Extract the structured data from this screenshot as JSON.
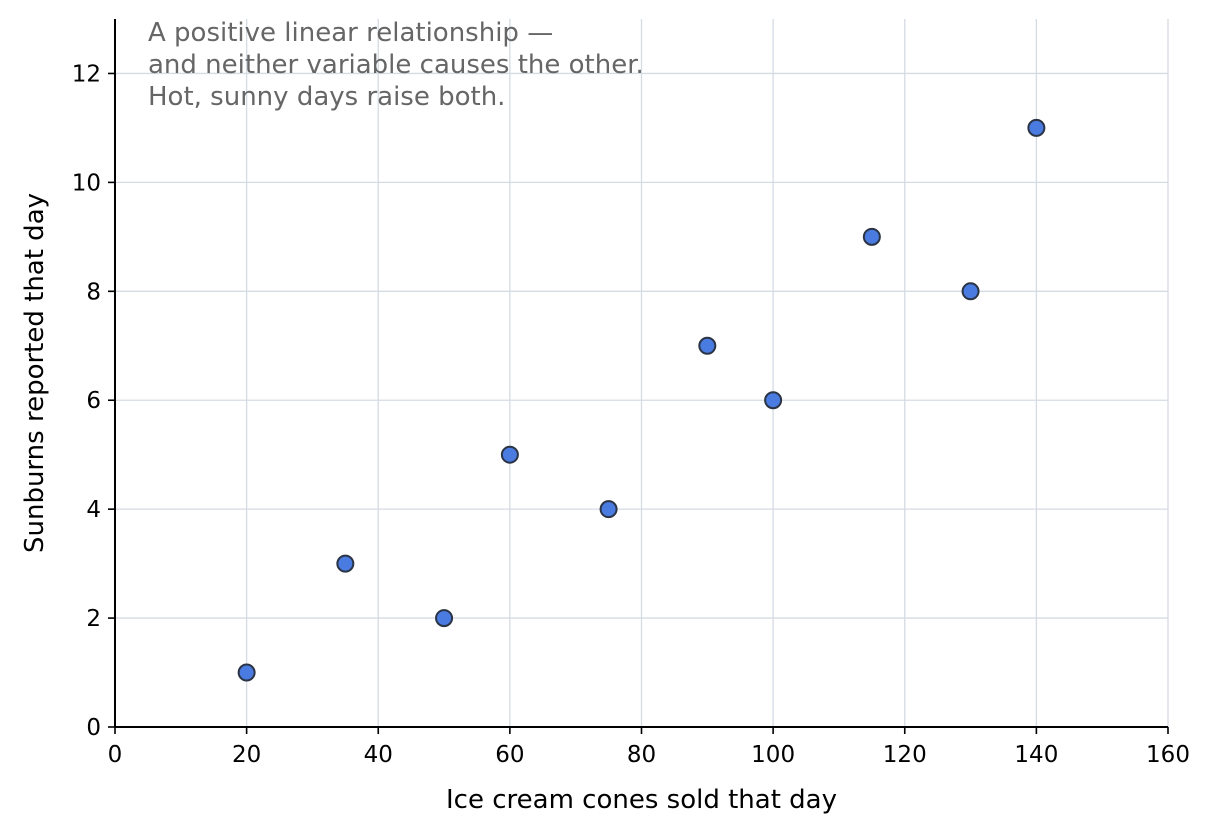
{
  "chart_data": {
    "type": "scatter",
    "title": "",
    "xlabel": "Ice cream cones sold that day",
    "ylabel": "Sunburns reported that day",
    "xlim": [
      0,
      160
    ],
    "ylim": [
      0,
      13
    ],
    "xticks": [
      0,
      20,
      40,
      60,
      80,
      100,
      120,
      140,
      160
    ],
    "yticks": [
      0,
      2,
      4,
      6,
      8,
      10,
      12
    ],
    "grid": true,
    "points": [
      {
        "x": 20,
        "y": 1
      },
      {
        "x": 35,
        "y": 3
      },
      {
        "x": 50,
        "y": 2
      },
      {
        "x": 60,
        "y": 5
      },
      {
        "x": 75,
        "y": 4
      },
      {
        "x": 90,
        "y": 7
      },
      {
        "x": 100,
        "y": 6
      },
      {
        "x": 115,
        "y": 9
      },
      {
        "x": 130,
        "y": 8
      },
      {
        "x": 140,
        "y": 11
      }
    ],
    "annotation": [
      "A positive linear relationship —",
      "and neither variable causes the other.",
      "Hot, sunny days raise both."
    ],
    "colors": {
      "marker_fill": "#4a7be0",
      "marker_edge": "#2a3445",
      "grid": "#d5dbe3",
      "axis": "#000000",
      "annotation": "#666666"
    }
  }
}
